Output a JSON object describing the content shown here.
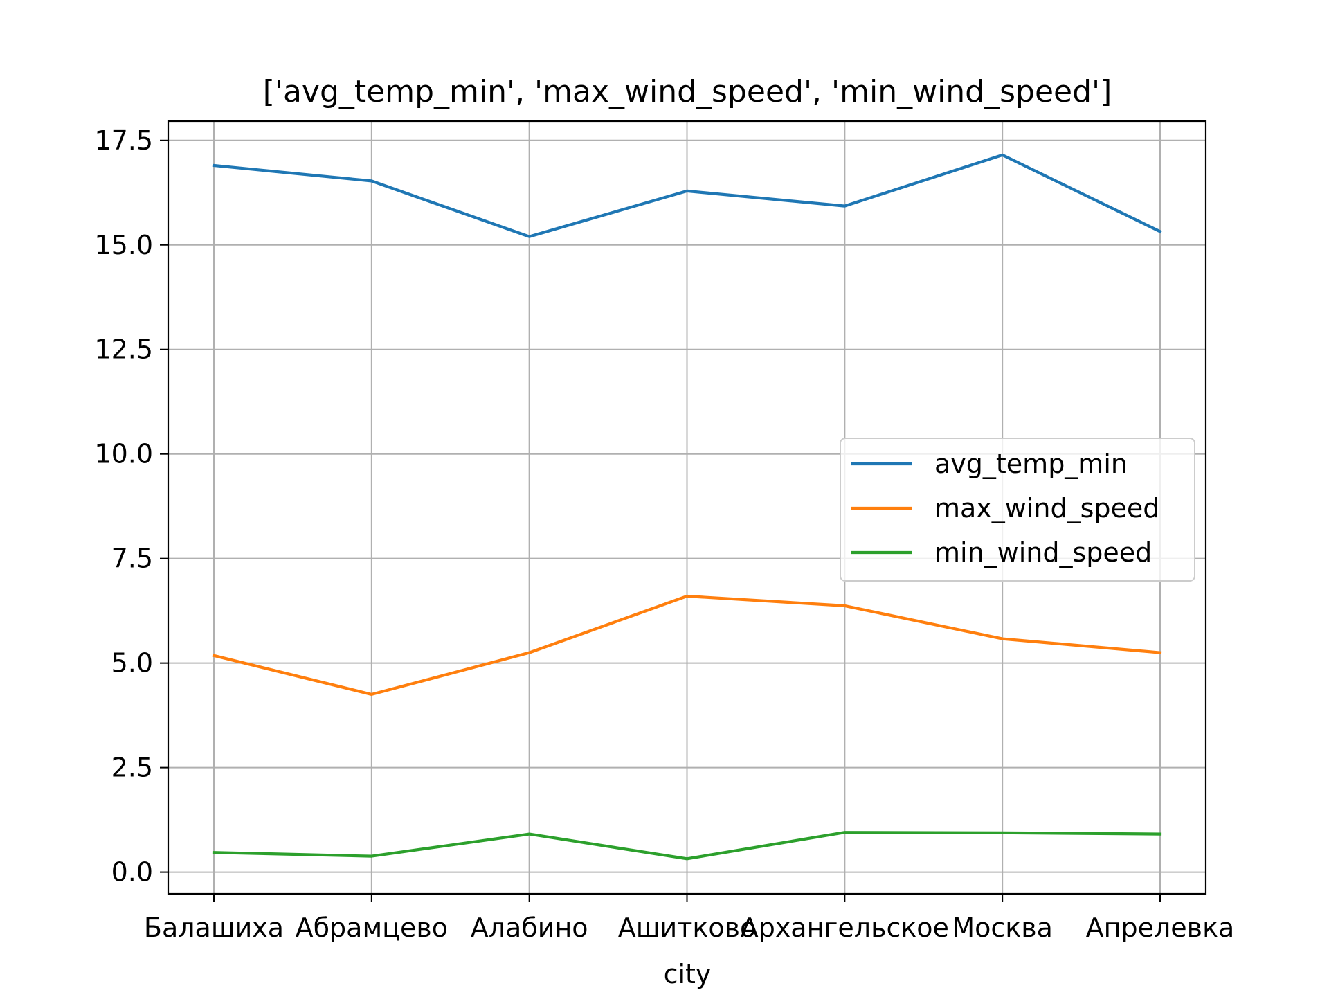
{
  "chart_data": {
    "type": "line",
    "title": "['avg_temp_min', 'max_wind_speed', 'min_wind_speed']",
    "xlabel": "city",
    "ylabel": "",
    "categories": [
      "Балашиха",
      "Абрамцево",
      "Алабино",
      "Ашитково",
      "Архангельское",
      "Москва",
      "Апрелевка"
    ],
    "ylim": [
      -0.52,
      17.96
    ],
    "yticks": [
      0.0,
      2.5,
      5.0,
      7.5,
      10.0,
      12.5,
      15.0,
      17.5
    ],
    "ytick_labels": [
      "0.0",
      "2.5",
      "5.0",
      "7.5",
      "10.0",
      "12.5",
      "15.0",
      "17.5"
    ],
    "grid": true,
    "legend_position": "center-right",
    "series": [
      {
        "name": "avg_temp_min",
        "color": "#1f77b4",
        "values": [
          16.9,
          16.53,
          15.2,
          16.29,
          15.93,
          17.15,
          15.32
        ]
      },
      {
        "name": "max_wind_speed",
        "color": "#ff7f0e",
        "values": [
          5.18,
          4.25,
          5.25,
          6.6,
          6.37,
          5.58,
          5.25
        ]
      },
      {
        "name": "min_wind_speed",
        "color": "#2ca02c",
        "values": [
          0.47,
          0.38,
          0.91,
          0.32,
          0.95,
          0.94,
          0.91
        ]
      }
    ]
  }
}
